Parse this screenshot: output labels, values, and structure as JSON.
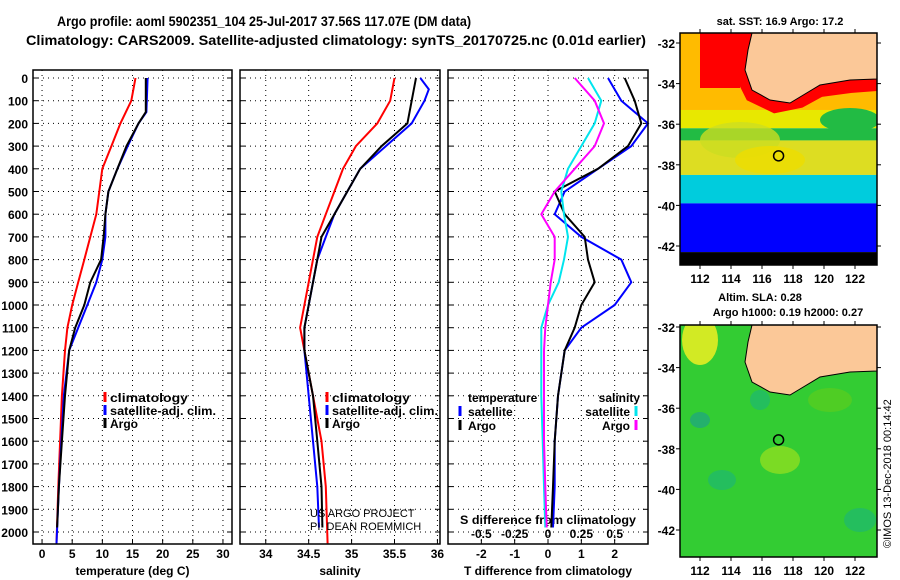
{
  "title_line1": "Argo profile: aoml 5902351_104 25-Jul-2017 37.56S 117.07E (DM data)",
  "title_line2": "Climatology: CARS2009. Satellite-adjusted climatology: synTS_20170725.nc (0.01d earlier)",
  "credit": "US ARGO PROJECT",
  "pi": "PI: DEAN ROEMMICH",
  "copyright": "©IMOS 13-Dec-2018 00:14:42",
  "colors": {
    "argo": "#000000",
    "clim": "#ff0000",
    "sat": "#0000ff",
    "sat_s": "#00e5ee",
    "argo_s": "#ff00ff"
  },
  "chart_data": [
    {
      "type": "line",
      "xlabel": "temperature (deg C)",
      "xlim": [
        -1.5,
        31.5
      ],
      "ylim": [
        2050,
        0
      ],
      "xticks": [
        0,
        5,
        10,
        15,
        20,
        25,
        30
      ],
      "yticks": [
        0,
        100,
        200,
        300,
        400,
        500,
        600,
        700,
        800,
        900,
        1000,
        1100,
        1200,
        1300,
        1400,
        1500,
        1600,
        1700,
        1800,
        1900,
        2000
      ],
      "legend": [
        "climatology",
        "satellite-adj. clim.",
        "Argo"
      ],
      "series": [
        {
          "name": "climatology",
          "color": "#ff0000",
          "points": [
            [
              0,
              15.5
            ],
            [
              100,
              14.8
            ],
            [
              200,
              13
            ],
            [
              300,
              11.5
            ],
            [
              400,
              10
            ],
            [
              500,
              9.5
            ],
            [
              600,
              9
            ],
            [
              700,
              8
            ],
            [
              800,
              7
            ],
            [
              900,
              6
            ],
            [
              1000,
              5
            ],
            [
              1100,
              4.2
            ],
            [
              1200,
              3.8
            ],
            [
              1400,
              3.3
            ],
            [
              1600,
              3
            ],
            [
              1800,
              2.7
            ],
            [
              2050,
              2.4
            ]
          ]
        },
        {
          "name": "satellite-adj. clim.",
          "color": "#0000ff",
          "points": [
            [
              0,
              17.5
            ],
            [
              150,
              17.3
            ],
            [
              200,
              16
            ],
            [
              300,
              14.2
            ],
            [
              400,
              12.5
            ],
            [
              500,
              11
            ],
            [
              600,
              10.5
            ],
            [
              700,
              10.5
            ],
            [
              800,
              10
            ],
            [
              900,
              9
            ],
            [
              1000,
              7.5
            ],
            [
              1100,
              6
            ],
            [
              1200,
              4.5
            ],
            [
              1400,
              3.6
            ],
            [
              1600,
              3.2
            ],
            [
              1800,
              2.8
            ],
            [
              2050,
              2.4
            ]
          ]
        },
        {
          "name": "Argo",
          "color": "#000000",
          "points": [
            [
              0,
              17.2
            ],
            [
              150,
              17.2
            ],
            [
              200,
              16
            ],
            [
              300,
              14
            ],
            [
              400,
              12.5
            ],
            [
              500,
              11
            ],
            [
              600,
              10.5
            ],
            [
              700,
              10.2
            ],
            [
              800,
              9.8
            ],
            [
              900,
              8
            ],
            [
              1000,
              7
            ],
            [
              1100,
              5.5
            ],
            [
              1200,
              4.5
            ],
            [
              1400,
              3.8
            ],
            [
              1600,
              3.3
            ],
            [
              1800,
              2.8
            ],
            [
              1980,
              2.5
            ]
          ]
        }
      ]
    },
    {
      "type": "line",
      "xlabel": "salinity",
      "xlim": [
        33.7,
        36.03
      ],
      "ylim": [
        2050,
        0
      ],
      "xticks": [
        34,
        34.5,
        35,
        35.5,
        36
      ],
      "legend": [
        "climatology",
        "satellite-adj. clim.",
        "Argo"
      ],
      "series": [
        {
          "name": "climatology",
          "color": "#ff0000",
          "points": [
            [
              0,
              35.5
            ],
            [
              100,
              35.45
            ],
            [
              200,
              35.3
            ],
            [
              300,
              35.05
            ],
            [
              400,
              34.9
            ],
            [
              500,
              34.8
            ],
            [
              600,
              34.7
            ],
            [
              700,
              34.6
            ],
            [
              800,
              34.55
            ],
            [
              900,
              34.5
            ],
            [
              1000,
              34.45
            ],
            [
              1100,
              34.4
            ],
            [
              1200,
              34.45
            ],
            [
              1400,
              34.55
            ],
            [
              1600,
              34.65
            ],
            [
              1800,
              34.7
            ],
            [
              2050,
              34.72
            ]
          ]
        },
        {
          "name": "satellite-adj. clim.",
          "color": "#0000ff",
          "points": [
            [
              0,
              35.8
            ],
            [
              50,
              35.9
            ],
            [
              100,
              35.85
            ],
            [
              200,
              35.7
            ],
            [
              300,
              35.4
            ],
            [
              400,
              35.1
            ],
            [
              500,
              34.95
            ],
            [
              600,
              34.8
            ],
            [
              700,
              34.7
            ],
            [
              800,
              34.6
            ],
            [
              900,
              34.55
            ],
            [
              1000,
              34.5
            ],
            [
              1100,
              34.45
            ],
            [
              1200,
              34.45
            ],
            [
              1400,
              34.5
            ],
            [
              1600,
              34.55
            ],
            [
              1800,
              34.6
            ],
            [
              1980,
              34.62
            ]
          ]
        },
        {
          "name": "Argo",
          "color": "#000000",
          "points": [
            [
              0,
              35.75
            ],
            [
              100,
              35.7
            ],
            [
              200,
              35.65
            ],
            [
              300,
              35.35
            ],
            [
              400,
              35.1
            ],
            [
              500,
              34.95
            ],
            [
              600,
              34.8
            ],
            [
              700,
              34.65
            ],
            [
              800,
              34.6
            ],
            [
              900,
              34.55
            ],
            [
              1000,
              34.5
            ],
            [
              1100,
              34.45
            ],
            [
              1200,
              34.45
            ],
            [
              1400,
              34.55
            ],
            [
              1600,
              34.6
            ],
            [
              1800,
              34.65
            ],
            [
              1980,
              34.66
            ]
          ]
        }
      ]
    },
    {
      "type": "line",
      "xlabel": "T difference from climatology",
      "xlabel2": "S difference from climatology",
      "xlim": [
        -3,
        3
      ],
      "x2lim": [
        -0.75,
        0.75
      ],
      "xticks": [
        -2,
        -1,
        0,
        1,
        2
      ],
      "xticks_labels": [
        "-2",
        "-1",
        "0",
        "1",
        "2"
      ],
      "x2ticks": [
        -0.5,
        -0.25,
        0,
        0.25,
        0.5
      ],
      "x2ticks_labels": [
        "-0.5",
        "-0.25",
        "0",
        "0.25",
        "0.5"
      ],
      "legend_t": {
        "heading": "temperature",
        "items": [
          "satellite",
          "Argo"
        ]
      },
      "legend_s": {
        "heading": "salinity",
        "items": [
          "satellite",
          "Argo"
        ]
      },
      "series": [
        {
          "name": "T satellite",
          "axis": "T",
          "color": "#0000ff",
          "points": [
            [
              0,
              1.8
            ],
            [
              100,
              2.2
            ],
            [
              200,
              3.0
            ],
            [
              300,
              2.5
            ],
            [
              400,
              1.5
            ],
            [
              500,
              0.5
            ],
            [
              600,
              0.2
            ],
            [
              700,
              1.0
            ],
            [
              800,
              2.2
            ],
            [
              900,
              2.5
            ],
            [
              1000,
              2.0
            ],
            [
              1100,
              1.0
            ],
            [
              1200,
              0.5
            ],
            [
              1400,
              0.3
            ],
            [
              1600,
              0.2
            ],
            [
              1800,
              0.2
            ],
            [
              1980,
              0.15
            ]
          ]
        },
        {
          "name": "T Argo",
          "axis": "T",
          "color": "#000000",
          "points": [
            [
              0,
              2.3
            ],
            [
              100,
              2.6
            ],
            [
              200,
              2.8
            ],
            [
              300,
              2.4
            ],
            [
              400,
              1.5
            ],
            [
              500,
              0.2
            ],
            [
              600,
              0.5
            ],
            [
              700,
              1.1
            ],
            [
              800,
              1.2
            ],
            [
              900,
              1.4
            ],
            [
              1000,
              1.0
            ],
            [
              1100,
              0.8
            ],
            [
              1200,
              0.5
            ],
            [
              1400,
              0.3
            ],
            [
              1600,
              0.2
            ],
            [
              1800,
              0.15
            ],
            [
              1980,
              0.1
            ]
          ]
        },
        {
          "name": "S satellite",
          "axis": "S",
          "color": "#00e5ee",
          "points": [
            [
              0,
              0.3
            ],
            [
              100,
              0.4
            ],
            [
              200,
              0.35
            ],
            [
              300,
              0.25
            ],
            [
              400,
              0.15
            ],
            [
              500,
              0.1
            ],
            [
              600,
              0.12
            ],
            [
              700,
              0.15
            ],
            [
              800,
              0.12
            ],
            [
              900,
              0.08
            ],
            [
              1000,
              0.0
            ],
            [
              1100,
              -0.05
            ],
            [
              1200,
              -0.05
            ],
            [
              1400,
              -0.05
            ],
            [
              1600,
              -0.04
            ],
            [
              1800,
              -0.03
            ],
            [
              1980,
              -0.02
            ]
          ]
        },
        {
          "name": "S Argo",
          "axis": "S",
          "color": "#ff00ff",
          "points": [
            [
              0,
              0.2
            ],
            [
              100,
              0.35
            ],
            [
              200,
              0.42
            ],
            [
              300,
              0.35
            ],
            [
              400,
              0.2
            ],
            [
              500,
              0.05
            ],
            [
              600,
              -0.05
            ],
            [
              700,
              0.05
            ],
            [
              800,
              0.05
            ],
            [
              900,
              0.02
            ],
            [
              1000,
              0.0
            ],
            [
              1100,
              -0.02
            ],
            [
              1200,
              -0.03
            ],
            [
              1400,
              -0.03
            ],
            [
              1600,
              -0.03
            ],
            [
              1800,
              -0.02
            ],
            [
              1980,
              -0.01
            ]
          ]
        }
      ]
    },
    {
      "type": "heatmap",
      "title": "sat. SST: 16.9 Argo: 17.2",
      "lon_ticks": [
        112,
        114,
        116,
        118,
        120,
        122
      ],
      "lat_ticks": [
        -32,
        -34,
        -36,
        -38,
        -40,
        -42
      ],
      "argo_position": [
        117.07,
        -37.56
      ]
    },
    {
      "type": "heatmap",
      "title": "Altim. SLA: 0.28",
      "subtitle": "Argo h1000: 0.19 h2000: 0.27",
      "lon_ticks": [
        112,
        114,
        116,
        118,
        120,
        122
      ],
      "lat_ticks": [
        -32,
        -34,
        -36,
        -38,
        -40,
        -42
      ],
      "argo_position": [
        117.07,
        -37.56
      ]
    }
  ]
}
